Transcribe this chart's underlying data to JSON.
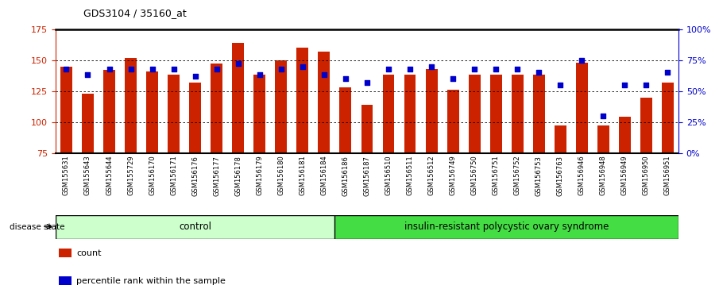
{
  "title": "GDS3104 / 35160_at",
  "samples": [
    "GSM155631",
    "GSM155643",
    "GSM155644",
    "GSM155729",
    "GSM156170",
    "GSM156171",
    "GSM156176",
    "GSM156177",
    "GSM156178",
    "GSM156179",
    "GSM156180",
    "GSM156181",
    "GSM156184",
    "GSM156186",
    "GSM156187",
    "GSM156510",
    "GSM156511",
    "GSM156512",
    "GSM156749",
    "GSM156750",
    "GSM156751",
    "GSM156752",
    "GSM156753",
    "GSM156763",
    "GSM156946",
    "GSM156948",
    "GSM156949",
    "GSM156950",
    "GSM156951"
  ],
  "counts": [
    145,
    123,
    142,
    152,
    141,
    138,
    132,
    147,
    164,
    138,
    150,
    160,
    157,
    128,
    114,
    138,
    138,
    143,
    126,
    138,
    138,
    138,
    138,
    97,
    148,
    97,
    104,
    120,
    132
  ],
  "percentile_ranks": [
    68,
    63,
    68,
    68,
    68,
    68,
    62,
    68,
    72,
    63,
    68,
    70,
    63,
    60,
    57,
    68,
    68,
    70,
    60,
    68,
    68,
    68,
    65,
    55,
    75,
    30,
    55,
    55,
    65
  ],
  "control_count": 13,
  "ylim_left": [
    75,
    175
  ],
  "ylim_right": [
    0,
    100
  ],
  "yticks_left": [
    75,
    100,
    125,
    150,
    175
  ],
  "yticks_right": [
    0,
    25,
    50,
    75,
    100
  ],
  "ytick_right_labels": [
    "0%",
    "25%",
    "50%",
    "75%",
    "100%"
  ],
  "bar_color": "#CC2200",
  "dot_color": "#0000CC",
  "bar_bottom": 75,
  "control_bg": "#CCFFCC",
  "disease_bg": "#44DD44",
  "legend_count_label": "count",
  "legend_pct_label": "percentile rank within the sample",
  "disease_state_label": "disease state",
  "group_label_control": "control",
  "group_label_disease": "insulin-resistant polycystic ovary syndrome",
  "grid_yticks": [
    100,
    125,
    150
  ]
}
